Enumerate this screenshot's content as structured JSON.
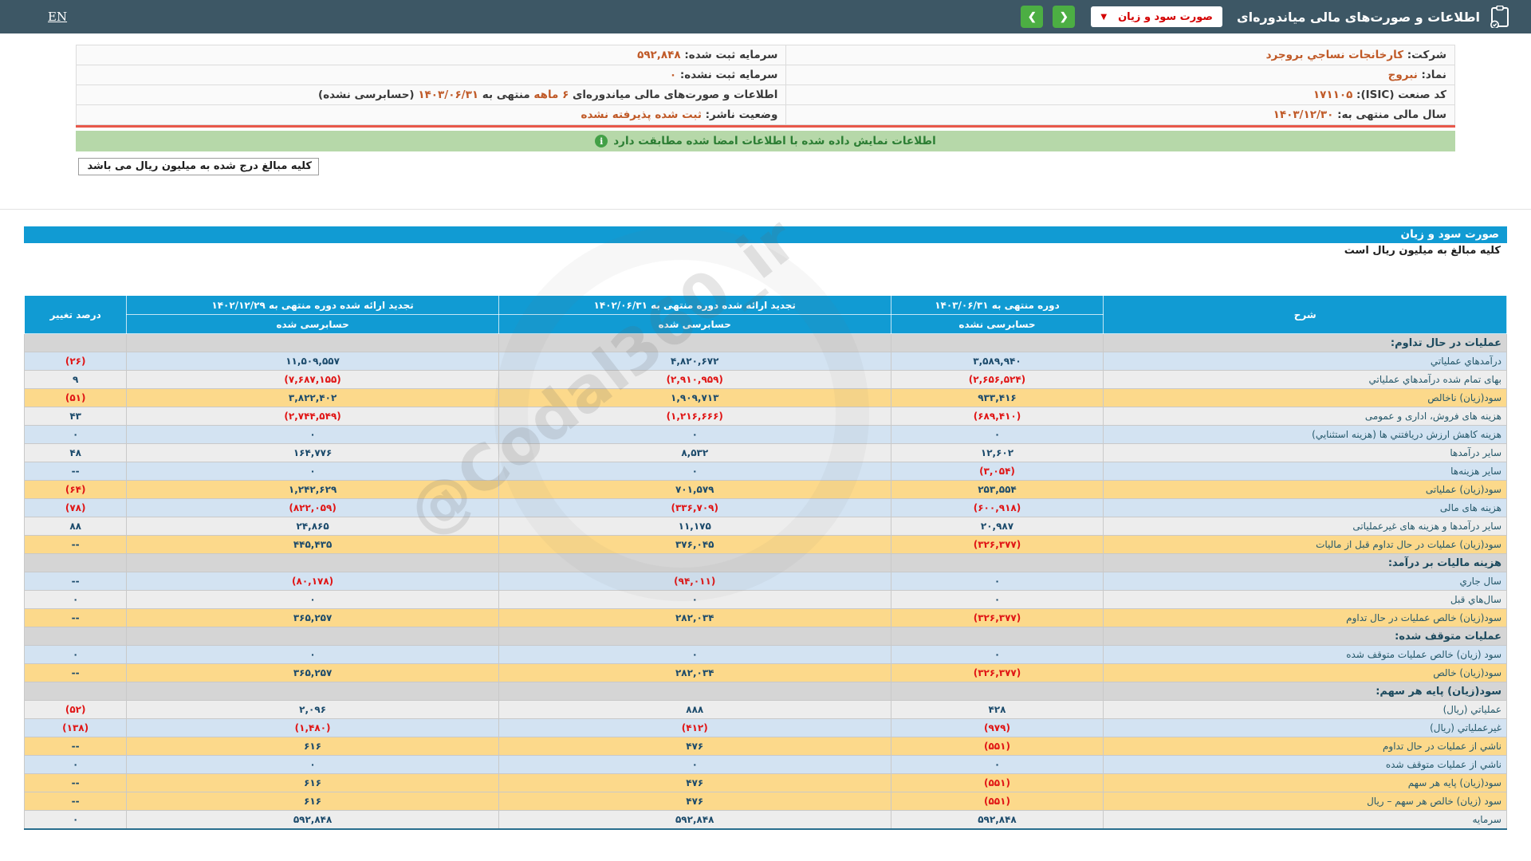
{
  "header": {
    "title": "اطلاعات و صورت‌های مالی میاندوره‌ای",
    "statement_dropdown": {
      "value": "صورت سود و زیان",
      "caret": "▼"
    },
    "nav_forward": "❯",
    "nav_back": "❮",
    "lang_link": "EN"
  },
  "company_info": {
    "company_label": "شرکت:",
    "company_value": "کارخانجات نساجي بروجرد",
    "symbol_label": "نماد:",
    "symbol_value": "نبروج",
    "isic_label": "کد صنعت (ISIC):",
    "isic_value": "۱۷۱۱۰۵",
    "fiscal_year_label": "سال مالی منتهی به:",
    "fiscal_year_value": "۱۴۰۳/۱۲/۳۰",
    "registered_capital_label": "سرمایه ثبت شده:",
    "registered_capital_value": "۵۹۲,۸۴۸",
    "unregistered_capital_label": "سرمایه ثبت نشده:",
    "unregistered_capital_value": "۰",
    "interim_label": "اطلاعات و صورت‌های مالی میاندوره‌ای",
    "interim_period": "۶ ماهه",
    "interim_mid": "منتهی به",
    "interim_date": "۱۴۰۳/۰۶/۳۱",
    "interim_tail": "(حسابرسی نشده)",
    "status_label": "وضعیت ناشر:",
    "status_value": "ثبت شده پذیرفته نشده"
  },
  "banner": {
    "text": "اطلاعات نمایش داده شده با اطلاعات امضا شده مطابقت دارد",
    "icon": "info-icon"
  },
  "amounts_note": "کلیه مبالغ درج شده به میلیون ریال می باشد",
  "statement": {
    "title": "صورت سود و زیان",
    "subtitle": "کلیه مبالغ به میلیون ریال است",
    "watermark": "@Codal360_ir",
    "columns": {
      "desc": "شرح",
      "current": {
        "line1": "دوره منتهی به ۱۴۰۳/۰۶/۳۱",
        "line2": "حسابرسی نشده"
      },
      "restated_mid": {
        "line1": "تجدید ارائه شده دوره منتهی به ۱۴۰۲/۰۶/۳۱",
        "line2": "حسابرسی شده"
      },
      "restated_year": {
        "line1": "تجدید ارائه شده دوره منتهی به ۱۴۰۲/۱۲/۲۹",
        "line2": "حسابرسی شده"
      },
      "change": "درصد تغییر"
    },
    "rows": [
      {
        "type": "section",
        "variant": "section",
        "label": "عملیات در حال تداوم:",
        "current": "",
        "mid": "",
        "year": "",
        "change": ""
      },
      {
        "type": "data",
        "variant": "blue",
        "label": "درآمدهاي عملیاتي",
        "current": "۳,۵۸۹,۹۴۰",
        "mid": "۴,۸۲۰,۶۷۲",
        "year": "۱۱,۵۰۹,۵۵۷",
        "change": "(۲۶)"
      },
      {
        "type": "data",
        "variant": "gray",
        "label": "بهای تمام شده درآمدهاي عملیاتي",
        "current": "(۲,۶۵۶,۵۲۴)",
        "mid": "(۲,۹۱۰,۹۵۹)",
        "year": "(۷,۶۸۷,۱۵۵)",
        "change": "۹"
      },
      {
        "type": "data",
        "variant": "yellow",
        "label": "سود(زیان) ناخالص",
        "current": "۹۳۳,۴۱۶",
        "mid": "۱,۹۰۹,۷۱۳",
        "year": "۳,۸۲۲,۴۰۲",
        "change": "(۵۱)"
      },
      {
        "type": "data",
        "variant": "gray",
        "label": "هزینه های فروش، اداری و عمومی",
        "current": "(۶۸۹,۴۱۰)",
        "mid": "(۱,۲۱۶,۶۶۶)",
        "year": "(۲,۷۴۴,۵۴۹)",
        "change": "۴۳"
      },
      {
        "type": "data",
        "variant": "blue",
        "label": "هزینه کاهش ارزش دریافتني ها (هزینه استثنایي)",
        "current": "۰",
        "mid": "۰",
        "year": "۰",
        "change": "۰"
      },
      {
        "type": "data",
        "variant": "gray",
        "label": "سایر درآمدها",
        "current": "۱۲,۶۰۲",
        "mid": "۸,۵۳۲",
        "year": "۱۶۴,۷۷۶",
        "change": "۴۸"
      },
      {
        "type": "data",
        "variant": "blue",
        "label": "سایر هزینه‌ها",
        "current": "(۳,۰۵۴)",
        "mid": "۰",
        "year": "۰",
        "change": "--"
      },
      {
        "type": "data",
        "variant": "yellow",
        "label": "سود(زیان) عملیاتی",
        "current": "۲۵۳,۵۵۴",
        "mid": "۷۰۱,۵۷۹",
        "year": "۱,۲۴۲,۶۲۹",
        "change": "(۶۴)"
      },
      {
        "type": "data",
        "variant": "blue",
        "label": "هزینه های مالی",
        "current": "(۶۰۰,۹۱۸)",
        "mid": "(۳۳۶,۷۰۹)",
        "year": "(۸۲۲,۰۵۹)",
        "change": "(۷۸)"
      },
      {
        "type": "data",
        "variant": "gray",
        "label": "سایر درآمدها و هزینه های غیرعملیاتی",
        "current": "۲۰,۹۸۷",
        "mid": "۱۱,۱۷۵",
        "year": "۲۴,۸۶۵",
        "change": "۸۸"
      },
      {
        "type": "data",
        "variant": "yellow",
        "label": "سود(زیان) عملیات در حال تداوم قبل از مالیات",
        "current": "(۳۲۶,۳۷۷)",
        "mid": "۳۷۶,۰۴۵",
        "year": "۴۴۵,۴۳۵",
        "change": "--"
      },
      {
        "type": "section",
        "variant": "section",
        "label": "هزینه مالیات بر درآمد:",
        "current": "",
        "mid": "",
        "year": "",
        "change": ""
      },
      {
        "type": "data",
        "variant": "blue",
        "label": "سال جاري",
        "current": "۰",
        "mid": "(۹۴,۰۱۱)",
        "year": "(۸۰,۱۷۸)",
        "change": "--"
      },
      {
        "type": "data",
        "variant": "gray",
        "label": "سال‌هاي قبل",
        "current": "۰",
        "mid": "۰",
        "year": "۰",
        "change": "۰"
      },
      {
        "type": "data",
        "variant": "yellow",
        "label": "سود(زیان) خالص عملیات در حال تداوم",
        "current": "(۳۲۶,۳۷۷)",
        "mid": "۲۸۲,۰۳۴",
        "year": "۳۶۵,۲۵۷",
        "change": "--"
      },
      {
        "type": "section",
        "variant": "section",
        "label": "عملیات متوقف شده:",
        "current": "",
        "mid": "",
        "year": "",
        "change": ""
      },
      {
        "type": "data",
        "variant": "blue",
        "label": "سود (زیان) خالص عملیات متوقف شده",
        "current": "۰",
        "mid": "۰",
        "year": "۰",
        "change": "۰"
      },
      {
        "type": "data",
        "variant": "yellow",
        "label": "سود(زیان) خالص",
        "current": "(۳۲۶,۳۷۷)",
        "mid": "۲۸۲,۰۳۴",
        "year": "۳۶۵,۲۵۷",
        "change": "--"
      },
      {
        "type": "section",
        "variant": "section",
        "label": "سود(زیان) پایه هر سهم:",
        "current": "",
        "mid": "",
        "year": "",
        "change": ""
      },
      {
        "type": "data",
        "variant": "gray",
        "label": "عملیاتي (ریال)",
        "current": "۴۲۸",
        "mid": "۸۸۸",
        "year": "۲,۰۹۶",
        "change": "(۵۲)"
      },
      {
        "type": "data",
        "variant": "blue",
        "label": "غیرعملیاتي (ریال)",
        "current": "(۹۷۹)",
        "mid": "(۴۱۲)",
        "year": "(۱,۴۸۰)",
        "change": "(۱۳۸)"
      },
      {
        "type": "data",
        "variant": "yellow",
        "label": "ناشي از عملیات در حال تداوم",
        "current": "(۵۵۱)",
        "mid": "۴۷۶",
        "year": "۶۱۶",
        "change": "--"
      },
      {
        "type": "data",
        "variant": "blue",
        "label": "ناشي از عملیات متوقف شده",
        "current": "۰",
        "mid": "۰",
        "year": "۰",
        "change": "۰"
      },
      {
        "type": "data",
        "variant": "yellow",
        "label": "سود(زیان) پایه هر سهم",
        "current": "(۵۵۱)",
        "mid": "۴۷۶",
        "year": "۶۱۶",
        "change": "--"
      },
      {
        "type": "data",
        "variant": "yellow",
        "label": "سود (زیان) خالص هر سهم – ریال",
        "current": "(۵۵۱)",
        "mid": "۴۷۶",
        "year": "۶۱۶",
        "change": "--"
      },
      {
        "type": "data",
        "variant": "gray",
        "label": "سرمایه",
        "current": "۵۹۲,۸۴۸",
        "mid": "۵۹۲,۸۴۸",
        "year": "۵۹۲,۸۴۸",
        "change": "۰"
      }
    ]
  },
  "colors": {
    "header_bar": "#3d5765",
    "accent_blue": "#119bd3",
    "nav_green": "#4cae43",
    "dropdown_text": "#d40000",
    "info_value_orange": "#c05a28",
    "red_rule": "#e8584a",
    "banner_green_bg": "#b6d8a9",
    "banner_green_text": "#2b7d33",
    "row_blue": "#d3e3f2",
    "row_gray": "#ededed",
    "row_yellow": "#fcd98b",
    "row_section": "#d5d5d5",
    "number_positive": "#1b4a6b",
    "number_negative": "#e01414"
  }
}
